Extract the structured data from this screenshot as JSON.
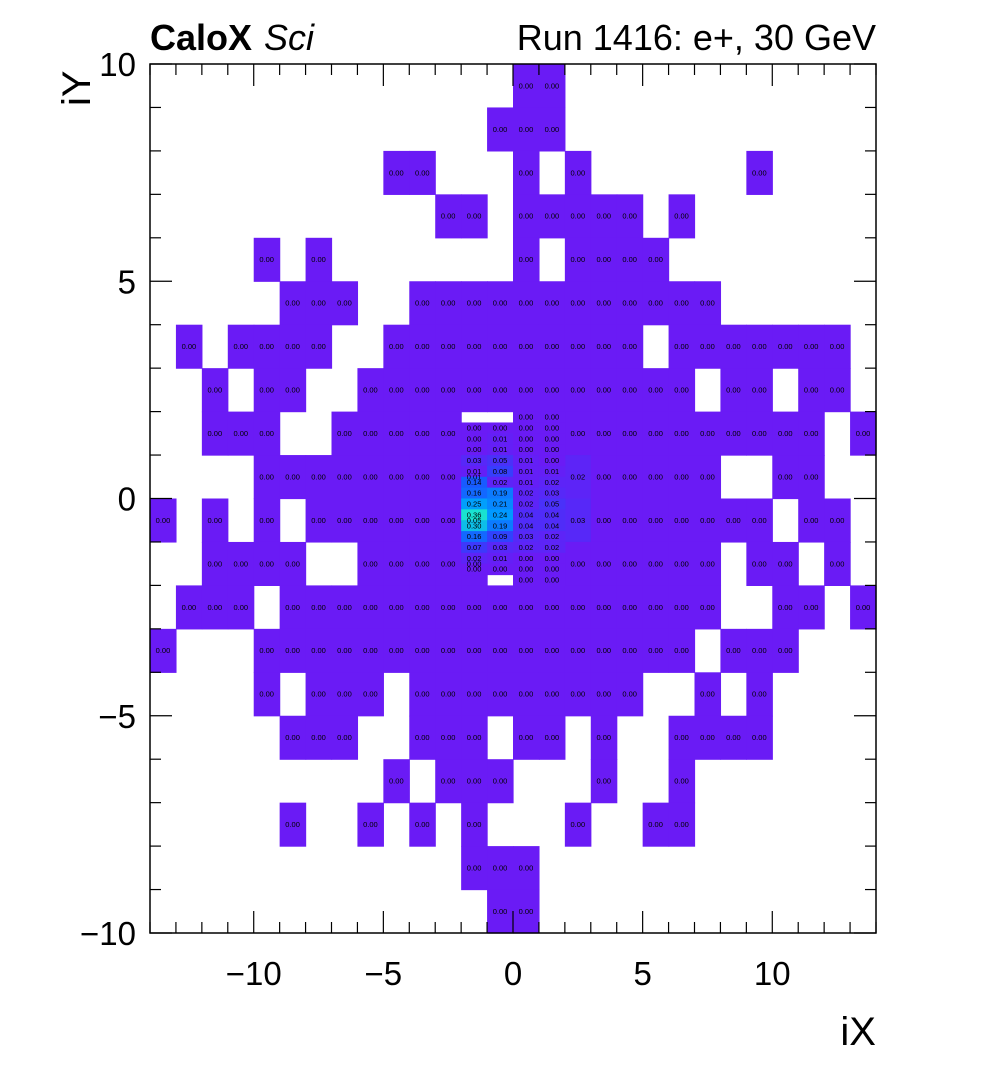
{
  "chart_data": {
    "type": "heatmap",
    "title_left_bold": "CaloX",
    "title_left_italic": "Sci",
    "title_right": "Run 1416: e+, 30 GeV",
    "xlabel": "iX",
    "ylabel": "iY",
    "xlim": [
      -14,
      14
    ],
    "ylim": [
      -10,
      10
    ],
    "x_ticks": [
      -10,
      -5,
      0,
      5,
      10
    ],
    "y_ticks": [
      -10,
      -5,
      0,
      5,
      10
    ],
    "x_tick_labels": [
      "−10",
      "−5",
      "0",
      "5",
      "10"
    ],
    "y_tick_labels": [
      "−10",
      "−5",
      "0",
      "5",
      "10"
    ],
    "bin_width_x": 1,
    "bin_height_y": 1,
    "low_color": "#6a1bf5",
    "colormap": [
      "#6a1bf5",
      "#1d4fff",
      "#0099ff",
      "#19e3d0"
    ],
    "value_max": 0.36,
    "large_rows": [
      {
        "y": 9,
        "x": [
          0,
          1
        ],
        "v": [
          "0.00",
          "0.00"
        ]
      },
      {
        "y": 8,
        "x": [
          -1,
          0,
          1
        ],
        "v": [
          "0.00",
          "0.00",
          "0.00"
        ]
      },
      {
        "y": 7,
        "x": [
          -5,
          -4,
          0,
          2,
          9
        ],
        "v": [
          "0.00",
          "0.00",
          "0.00",
          "0.00",
          "0.00"
        ]
      },
      {
        "y": 6,
        "x": [
          -3,
          -2,
          0,
          1,
          2,
          3,
          4,
          6
        ],
        "v": [
          "0.00",
          "0.00",
          "0.00",
          "0.00",
          "0.00",
          "0.00",
          "0.00",
          "0.00"
        ]
      },
      {
        "y": 5,
        "x": [
          -10,
          -8,
          0,
          2,
          3,
          4,
          5
        ],
        "v": [
          "0.00",
          "0.00",
          "0.00",
          "0.00",
          "0.00",
          "0.00",
          "0.00"
        ]
      },
      {
        "y": 4,
        "x": [
          -9,
          -8,
          -7,
          -4,
          -3,
          -2,
          -1,
          0,
          1,
          2,
          3,
          4,
          5,
          6,
          7
        ],
        "v": [
          "0.00",
          "0.00",
          "0.00",
          "0.00",
          "0.00",
          "0.00",
          "0.00",
          "0.00",
          "0.00",
          "0.00",
          "0.00",
          "0.00",
          "0.00",
          "0.00",
          "0.00"
        ]
      },
      {
        "y": 3,
        "x": [
          -13,
          -11,
          -10,
          -9,
          -8,
          -5,
          -4,
          -3,
          -2,
          -1,
          0,
          1,
          2,
          3,
          4,
          6,
          7,
          8,
          9,
          10,
          11,
          12
        ],
        "v": [
          "0.00",
          "0.00",
          "0.00",
          "0.00",
          "0.00",
          "0.00",
          "0.00",
          "0.00",
          "0.00",
          "0.00",
          "0.00",
          "0.00",
          "0.00",
          "0.00",
          "0.00",
          "0.00",
          "0.00",
          "0.00",
          "0.00",
          "0.00",
          "0.00",
          "0.00"
        ]
      },
      {
        "y": 2,
        "x": [
          -12,
          -10,
          -9,
          -6,
          -5,
          -4,
          -3,
          -2,
          -1,
          0,
          1,
          2,
          3,
          4,
          5,
          6,
          8,
          9,
          11,
          12
        ],
        "v": [
          "0.00",
          "0.00",
          "0.00",
          "0.00",
          "0.00",
          "0.00",
          "0.00",
          "0.00",
          "0.00",
          "0.00",
          "0.00",
          "0.00",
          "0.00",
          "0.00",
          "0.00",
          "0.00",
          "0.00",
          "0.00",
          "0.00",
          "0.00"
        ]
      },
      {
        "y": 1,
        "x": [
          -12,
          -11,
          -10,
          -7,
          -6,
          -5,
          -4,
          -3,
          2,
          3,
          4,
          5,
          6,
          7,
          8,
          9,
          10,
          11,
          13
        ],
        "v": [
          "0.00",
          "0.00",
          "0.00",
          "0.00",
          "0.00",
          "0.00",
          "0.00",
          "0.00",
          "0.00",
          "0.00",
          "0.00",
          "0.00",
          "0.00",
          "0.00",
          "0.00",
          "0.00",
          "0.00",
          "0.00",
          "0.00"
        ]
      },
      {
        "y": 0,
        "x": [
          -10,
          -9,
          -8,
          -7,
          -6,
          -5,
          -4,
          -3,
          -2,
          2,
          3,
          4,
          5,
          6,
          7,
          10,
          11
        ],
        "v": [
          "0.00",
          "0.00",
          "0.00",
          "0.00",
          "0.00",
          "0.00",
          "0.00",
          "0.00",
          "0.01",
          "0.02",
          "0.00",
          "0.00",
          "0.00",
          "0.00",
          "0.00",
          "0.00",
          "0.00"
        ]
      },
      {
        "y": -1,
        "x": [
          -14,
          -12,
          -10,
          -8,
          -7,
          -6,
          -5,
          -4,
          -3,
          -2,
          2,
          3,
          4,
          5,
          6,
          7,
          8,
          9,
          11,
          12
        ],
        "v": [
          "0.00",
          "0.00",
          "0.00",
          "0.00",
          "0.00",
          "0.00",
          "0.00",
          "0.00",
          "0.00",
          "0.05",
          "0.03",
          "0.00",
          "0.00",
          "0.00",
          "0.00",
          "0.00",
          "0.00",
          "0.00",
          "0.00",
          "0.00"
        ]
      },
      {
        "y": -2,
        "x": [
          -12,
          -11,
          -10,
          -9,
          -6,
          -5,
          -4,
          -3,
          -2,
          2,
          3,
          4,
          5,
          6,
          7,
          9,
          10,
          12
        ],
        "v": [
          "0.00",
          "0.00",
          "0.00",
          "0.00",
          "0.00",
          "0.00",
          "0.00",
          "0.00",
          "0.00",
          "0.00",
          "0.00",
          "0.00",
          "0.00",
          "0.00",
          "0.00",
          "0.00",
          "0.00",
          "0.00"
        ]
      },
      {
        "y": -3,
        "x": [
          -13,
          -12,
          -11,
          -9,
          -8,
          -7,
          -6,
          -5,
          -4,
          -3,
          -2,
          -1,
          0,
          1,
          2,
          3,
          4,
          5,
          6,
          7,
          10,
          11,
          13
        ],
        "v": [
          "0.00",
          "0.00",
          "0.00",
          "0.00",
          "0.00",
          "0.00",
          "0.00",
          "0.00",
          "0.00",
          "0.00",
          "0.00",
          "0.00",
          "0.00",
          "0.00",
          "0.00",
          "0.00",
          "0.00",
          "0.00",
          "0.00",
          "0.00",
          "0.00",
          "0.00",
          "0.00"
        ]
      },
      {
        "y": -4,
        "x": [
          -14,
          -10,
          -9,
          -8,
          -7,
          -6,
          -5,
          -4,
          -3,
          -2,
          -1,
          0,
          1,
          2,
          3,
          4,
          5,
          6,
          8,
          9,
          10
        ],
        "v": [
          "0.00",
          "0.00",
          "0.00",
          "0.00",
          "0.00",
          "0.00",
          "0.00",
          "0.00",
          "0.00",
          "0.00",
          "0.00",
          "0.00",
          "0.00",
          "0.00",
          "0.00",
          "0.00",
          "0.00",
          "0.00",
          "0.00",
          "0.00",
          "0.00"
        ]
      },
      {
        "y": -5,
        "x": [
          -10,
          -8,
          -7,
          -6,
          -4,
          -3,
          -2,
          -1,
          0,
          1,
          2,
          3,
          4,
          7,
          9
        ],
        "v": [
          "0.00",
          "0.00",
          "0.00",
          "0.00",
          "0.00",
          "0.00",
          "0.00",
          "0.00",
          "0.00",
          "0.00",
          "0.00",
          "0.00",
          "0.00",
          "0.00",
          "0.00"
        ]
      },
      {
        "y": -6,
        "x": [
          -9,
          -8,
          -7,
          -4,
          -3,
          -2,
          0,
          1,
          3,
          6,
          7,
          8,
          9
        ],
        "v": [
          "0.00",
          "0.00",
          "0.00",
          "0.00",
          "0.00",
          "0.00",
          "0.00",
          "0.00",
          "0.00",
          "0.00",
          "0.00",
          "0.00",
          "0.00"
        ]
      },
      {
        "y": -7,
        "x": [
          -5,
          -3,
          -2,
          -1,
          3,
          6
        ],
        "v": [
          "0.00",
          "0.00",
          "0.00",
          "0.00",
          "0.00",
          "0.00"
        ]
      },
      {
        "y": -8,
        "x": [
          -9,
          -6,
          -4,
          -2,
          2,
          5,
          6
        ],
        "v": [
          "0.00",
          "0.00",
          "0.00",
          "0.00",
          "0.00",
          "0.00",
          "0.00"
        ]
      },
      {
        "y": -9,
        "x": [
          -2,
          -1,
          0
        ],
        "v": [
          "0.00",
          "0.00",
          "0.00"
        ]
      },
      {
        "y": -10,
        "x": [
          -1,
          0
        ],
        "v": [
          "0.00",
          "0.00"
        ]
      }
    ],
    "fine_region": {
      "x_cols": [
        -2,
        -1,
        0,
        1
      ],
      "col_width": 1,
      "y_top": 2,
      "row_height": 0.25,
      "rows": [
        [
          null,
          null,
          "0.00",
          "0.00"
        ],
        [
          "0.00",
          "0.00",
          "0.00",
          "0.00"
        ],
        [
          "0.00",
          "0.01",
          "0.00",
          "0.00"
        ],
        [
          "0.00",
          "0.01",
          "0.00",
          "0.00"
        ],
        [
          "0.03",
          "0.05",
          "0.01",
          "0.00"
        ],
        [
          "0.01",
          "0.08",
          "0.01",
          "0.01"
        ],
        [
          "0.14",
          "0.02",
          "0.01",
          "0.02"
        ],
        [
          "0.16",
          "0.19",
          "0.02",
          "0.03"
        ],
        [
          "0.25",
          "0.21",
          "0.02",
          "0.05"
        ],
        [
          "0.36",
          "0.24",
          "0.04",
          "0.04"
        ],
        [
          "0.30",
          "0.19",
          "0.04",
          "0.04"
        ],
        [
          "0.16",
          "0.09",
          "0.03",
          "0.02"
        ],
        [
          "0.07",
          "0.03",
          "0.02",
          "0.02"
        ],
        [
          "0.02",
          "0.01",
          "0.00",
          "0.00"
        ],
        [
          "0.00",
          "0.00",
          "0.00",
          "0.00"
        ],
        [
          null,
          null,
          "0.00",
          "0.00"
        ]
      ]
    }
  }
}
